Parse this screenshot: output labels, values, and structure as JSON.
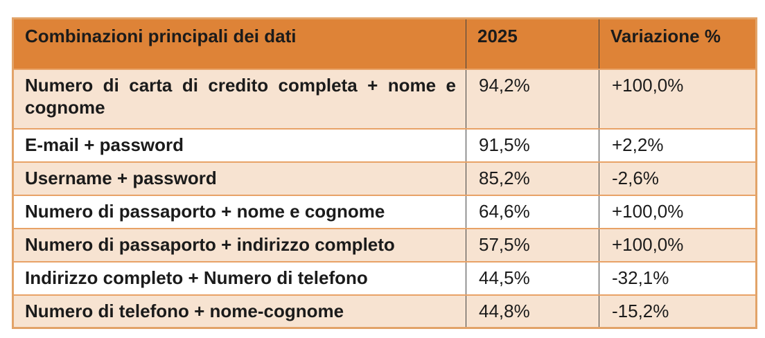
{
  "table": {
    "columns": {
      "combination": "Combinazioni principali dei dati",
      "year": "2025",
      "variation": "Variazione %"
    },
    "rows": [
      {
        "combination": "Numero di carta di credito completa + nome e cognome",
        "value_2025": "94,2%",
        "variation": "+100,0%"
      },
      {
        "combination": "E-mail + password",
        "value_2025": "91,5%",
        "variation": "+2,2%"
      },
      {
        "combination": "Username + password",
        "value_2025": "85,2%",
        "variation": "-2,6%"
      },
      {
        "combination": "Numero di passaporto + nome e cognome",
        "value_2025": "64,6%",
        "variation": "+100,0%"
      },
      {
        "combination": "Numero di passaporto + indirizzo completo",
        "value_2025": "57,5%",
        "variation": "+100,0%"
      },
      {
        "combination": "Indirizzo completo + Numero di telefono",
        "value_2025": "44,5%",
        "variation": "-32,1%"
      },
      {
        "combination": "Numero di telefono + nome-cognome",
        "value_2025": "44,8%",
        "variation": "-15,2%"
      }
    ]
  },
  "colors": {
    "header_background": "#de8337",
    "row_shade_background": "#f7e3d1",
    "row_plain_background": "#ffffff",
    "row_separator": "#e8a266",
    "outer_border": "#e2a368",
    "column_separator": "#404040",
    "text": "#1b1b1b"
  },
  "chart_data": {
    "type": "table",
    "title": "Combinazioni principali dei dati",
    "columns": [
      "Combinazioni principali dei dati",
      "2025",
      "Variazione %"
    ],
    "rows": [
      [
        "Numero di carta di credito completa + nome e cognome",
        "94,2%",
        "+100,0%"
      ],
      [
        "E-mail + password",
        "91,5%",
        "+2,2%"
      ],
      [
        "Username + password",
        "85,2%",
        "-2,6%"
      ],
      [
        "Numero di passaporto + nome e cognome",
        "64,6%",
        "+100,0%"
      ],
      [
        "Numero di passaporto + indirizzo completo",
        "57,5%",
        "+100,0%"
      ],
      [
        "Indirizzo completo + Numero di telefono",
        "44,5%",
        "-32,1%"
      ],
      [
        "Numero di telefono + nome-cognome",
        "44,8%",
        "-15,2%"
      ]
    ],
    "values_2025": [
      94.2,
      91.5,
      85.2,
      64.6,
      57.5,
      44.5,
      44.8
    ],
    "variation_percent": [
      100.0,
      2.2,
      -2.6,
      100.0,
      100.0,
      -32.1,
      -15.2
    ]
  }
}
